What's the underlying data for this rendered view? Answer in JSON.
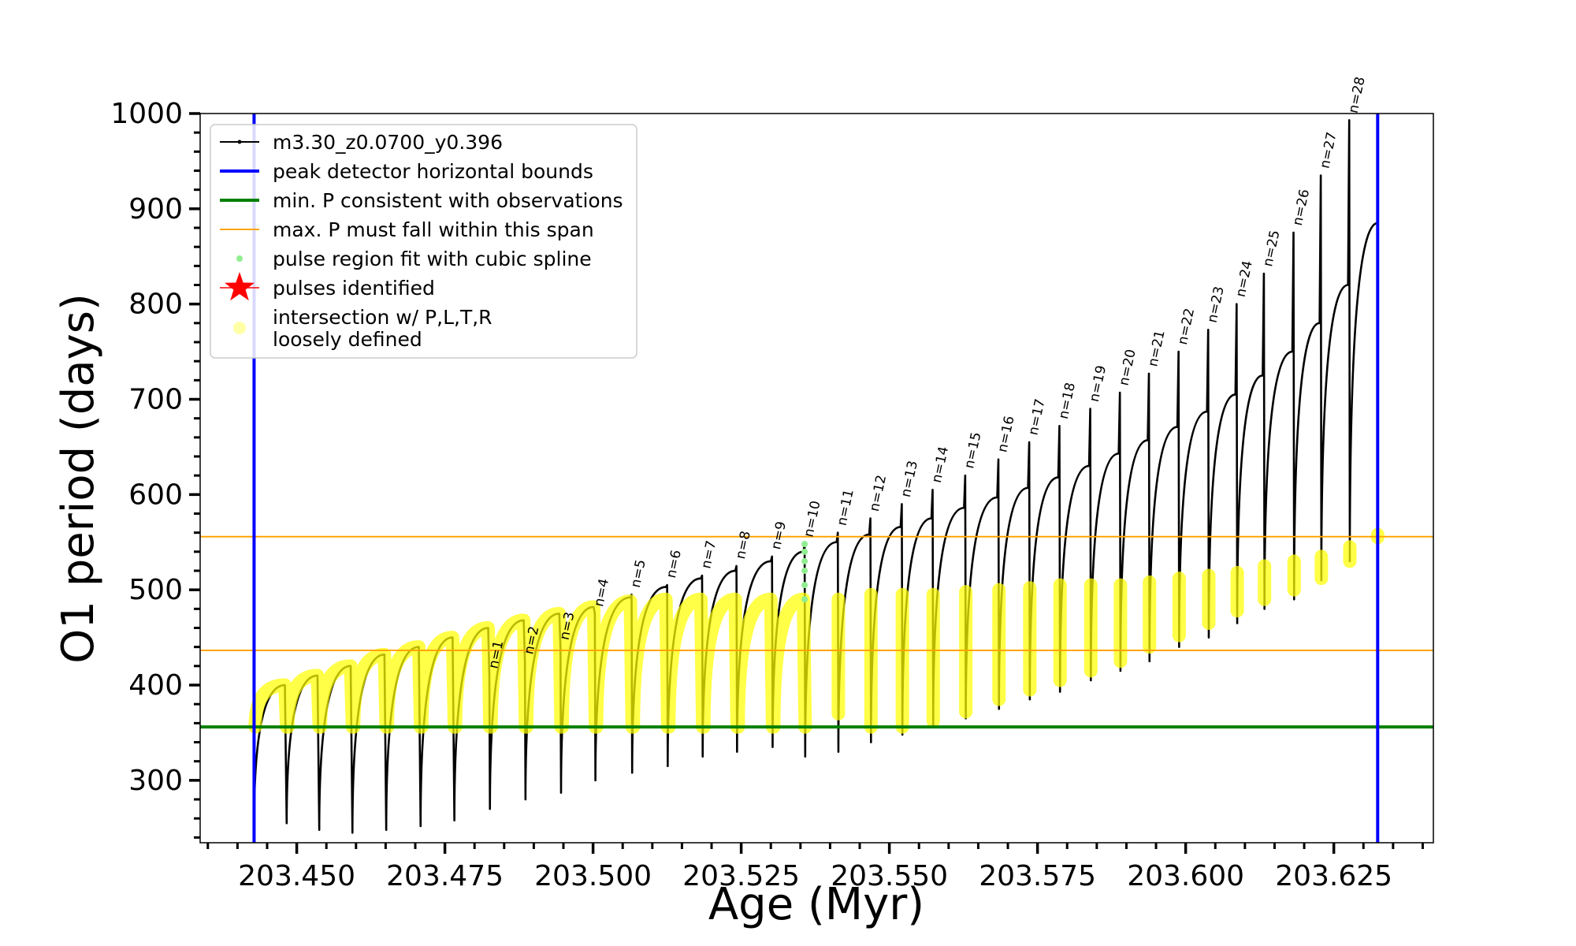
{
  "chart_data": {
    "type": "line",
    "xlabel": "Age (Myr)",
    "ylabel": "O1 period (days)",
    "xlim": [
      203.4337,
      203.6418
    ],
    "ylim": [
      234.5,
      1000
    ],
    "xticks": [
      {
        "value": 203.45,
        "label": "203.450"
      },
      {
        "value": 203.475,
        "label": "203.475"
      },
      {
        "value": 203.5,
        "label": "203.500"
      },
      {
        "value": 203.525,
        "label": "203.525"
      },
      {
        "value": 203.55,
        "label": "203.550"
      },
      {
        "value": 203.575,
        "label": "203.575"
      },
      {
        "value": 203.6,
        "label": "203.600"
      },
      {
        "value": 203.625,
        "label": "203.625"
      }
    ],
    "yticks": [
      300,
      400,
      500,
      600,
      700,
      800,
      900,
      1000
    ],
    "legend": "upper left",
    "series": [
      {
        "name": "m3.30_z0.0700_y0.396",
        "kind": "line",
        "color": "#000000",
        "x": [
          203.4428,
          203.448,
          203.4483,
          203.4535,
          203.4538,
          203.4591,
          203.4594,
          203.4648,
          203.4651,
          203.4706,
          203.4709,
          203.4763,
          203.4766,
          203.4823,
          203.4825,
          203.4826,
          203.4883,
          203.4885,
          203.4886,
          203.4943,
          203.4945,
          203.4946,
          203.5001,
          203.5003,
          203.5004,
          203.5063,
          203.5065,
          203.5066,
          203.5123,
          203.5125,
          203.5126,
          203.5182,
          203.5184,
          203.5185,
          203.524,
          203.5242,
          203.5243,
          203.53,
          203.5302,
          203.5303,
          203.5355,
          203.5357,
          203.5358,
          203.5411,
          203.5413,
          203.5414,
          203.5466,
          203.5468,
          203.5469,
          203.5519,
          203.5521,
          203.5522,
          203.5571,
          203.5573,
          203.5574,
          203.5626,
          203.5628,
          203.5629,
          203.5682,
          203.5684,
          203.5685,
          203.5734,
          203.5736,
          203.5737,
          203.5785,
          203.5787,
          203.5788,
          203.5837,
          203.5839,
          203.584,
          203.5887,
          203.5889,
          203.589,
          203.5936,
          203.5938,
          203.5939,
          203.5986,
          203.5988,
          203.5989,
          203.6036,
          203.6038,
          203.6039,
          203.6084,
          203.6086,
          203.6087,
          203.613,
          203.6132,
          203.6133,
          203.618,
          203.6182,
          203.6183,
          203.6226,
          203.6228,
          203.6229,
          203.6274,
          203.6276,
          203.6277,
          203.6324
        ],
        "values": [
          252,
          400,
          255,
          410,
          248,
          420,
          245,
          432,
          248,
          440,
          252,
          450,
          258,
          460,
          410,
          270,
          468,
          425,
          280,
          475,
          440,
          287,
          482,
          475,
          300,
          492,
          495,
          308,
          503,
          505,
          315,
          512,
          515,
          325,
          520,
          525,
          330,
          530,
          535,
          335,
          540,
          548,
          325,
          550,
          560,
          330,
          558,
          575,
          340,
          566,
          590,
          348,
          575,
          605,
          358,
          586,
          620,
          365,
          597,
          637,
          375,
          607,
          655,
          385,
          618,
          672,
          393,
          630,
          690,
          405,
          643,
          707,
          415,
          657,
          727,
          425,
          671,
          750,
          440,
          687,
          773,
          450,
          705,
          800,
          465,
          725,
          832,
          480,
          750,
          875,
          490,
          780,
          935,
          510,
          820,
          993,
          530,
          885
        ]
      },
      {
        "name": "peak detector horizontal bounds",
        "kind": "vline",
        "color": "#0000ff",
        "x": [
          203.4428,
          203.6324
        ]
      },
      {
        "name": "min. P consistent with observations",
        "kind": "hline",
        "color": "#008000",
        "values": [
          356
        ]
      },
      {
        "name": "max. P must fall within this span",
        "kind": "hline",
        "color": "#ffa500",
        "values": [
          555.8,
          436.4
        ]
      },
      {
        "name": "pulse region fit with cubic spline",
        "kind": "scatter",
        "color": "#90ee90",
        "x": [
          203.5357,
          203.5357,
          203.5357,
          203.5357,
          203.5357,
          203.5357
        ],
        "values": [
          548,
          540,
          530,
          520,
          505,
          490
        ]
      },
      {
        "name": "pulses identified",
        "kind": "star",
        "color": "#ff0000",
        "x": [],
        "values": []
      },
      {
        "name": "intersection w/ P,L,T,R\nloosely defined",
        "kind": "band",
        "color": "#ffff00",
        "x": [
          203.443,
          203.448,
          203.4483,
          203.4485,
          203.4535,
          203.4538,
          203.454,
          203.4591,
          203.4594,
          203.4596,
          203.4648,
          203.4651,
          203.4653,
          203.4706,
          203.4709,
          203.4711,
          203.4763,
          203.4766,
          203.4768,
          203.4823,
          203.4826,
          203.4828,
          203.4883,
          203.4886,
          203.4888,
          203.4943,
          203.4946,
          203.4948,
          203.5001,
          203.5004,
          203.5006,
          203.5063,
          203.5066,
          203.5068,
          203.5123,
          203.5126,
          203.5128,
          203.5182,
          203.5185,
          203.5187,
          203.524,
          203.5243,
          203.5245,
          203.53,
          203.5303,
          203.5305,
          203.5355,
          203.5358,
          null,
          203.5414,
          203.5414,
          null,
          203.5469,
          203.5469,
          null,
          203.5522,
          203.5522,
          null,
          203.5574,
          203.5574,
          null,
          203.5629,
          203.5629,
          null,
          203.5685,
          203.5685,
          null,
          203.5737,
          203.5737,
          null,
          203.5788,
          203.5788,
          null,
          203.584,
          203.584,
          null,
          203.589,
          203.589,
          null,
          203.5939,
          203.5939,
          null,
          203.5989,
          203.5989,
          null,
          203.6039,
          203.6039,
          null,
          203.6087,
          203.6087,
          null,
          203.6133,
          203.6133,
          null,
          203.6183,
          203.6183,
          null,
          203.6229,
          203.6229,
          null,
          203.6277,
          203.6277,
          null,
          203.6324,
          203.6324
        ],
        "values": [
          356,
          400,
          356,
          356,
          410,
          356,
          356,
          420,
          356,
          356,
          432,
          356,
          356,
          440,
          356,
          356,
          450,
          356,
          356,
          460,
          356,
          356,
          468,
          356,
          356,
          475,
          356,
          356,
          482,
          356,
          356,
          488,
          356,
          356,
          490,
          356,
          356,
          490,
          356,
          356,
          490,
          356,
          356,
          490,
          356,
          356,
          490,
          356,
          null,
          370,
          490,
          null,
          356,
          495,
          null,
          356,
          495,
          null,
          362,
          495,
          null,
          372,
          498,
          null,
          385,
          500,
          null,
          395,
          502,
          null,
          405,
          505,
          null,
          415,
          505,
          null,
          425,
          505,
          null,
          440,
          508,
          null,
          452,
          512,
          null,
          465,
          515,
          null,
          478,
          518,
          null,
          490,
          525,
          null,
          500,
          530,
          null,
          512,
          535,
          null,
          530,
          545,
          null,
          555,
          558
        ]
      }
    ],
    "pulse_labels": [
      "n=1",
      "n=2",
      "n=3",
      "n=4",
      "n=5",
      "n=6",
      "n=7",
      "n=8",
      "n=9",
      "n=10",
      "n=11",
      "n=12",
      "n=13",
      "n=14",
      "n=15",
      "n=16",
      "n=17",
      "n=18",
      "n=19",
      "n=20",
      "n=21",
      "n=22",
      "n=23",
      "n=24",
      "n=25",
      "n=26",
      "n=27",
      "n=28"
    ]
  }
}
